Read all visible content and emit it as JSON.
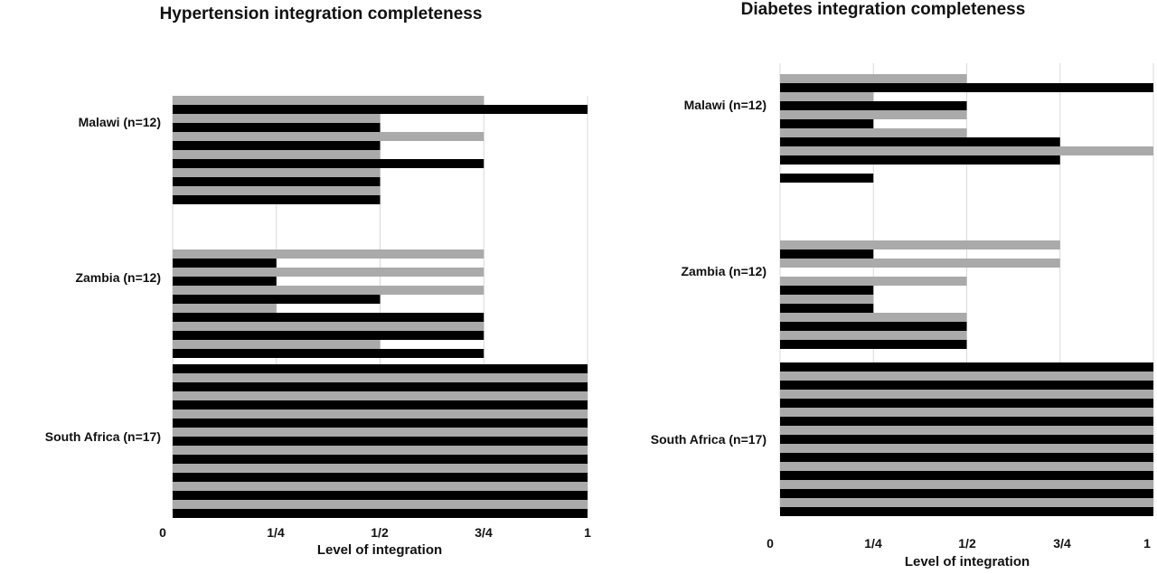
{
  "colors": {
    "black": "#000000",
    "gray": "#aaaaaa",
    "grid": "#d9d9d9"
  },
  "chart_data": [
    {
      "type": "bar",
      "orientation": "horizontal",
      "title": "Hypertension integration completeness",
      "xlabel": "Level of integration",
      "xlim": [
        0,
        1
      ],
      "x_ticks": [
        0,
        0.25,
        0.5,
        0.75,
        1
      ],
      "x_tick_labels": [
        "0",
        "1/4",
        "1/2",
        "3/4",
        "1"
      ],
      "grid": "vertical",
      "categories": [
        "Malawi (n=12)",
        "Zambia (n=12)",
        "South Africa (n=17)"
      ],
      "groups": [
        {
          "category": "Malawi (n=12)",
          "values": [
            0.75,
            1,
            0.5,
            0.5,
            0.75,
            0.5,
            0.5,
            0.75,
            0.5,
            0.5,
            0.5,
            0.5
          ],
          "colors": [
            "gray",
            "black",
            "gray",
            "black",
            "gray",
            "black",
            "gray",
            "black",
            "gray",
            "black",
            "gray",
            "black"
          ]
        },
        {
          "category": "Zambia (n=12)",
          "values": [
            0.75,
            0.25,
            0.75,
            0.25,
            0.75,
            0.5,
            0.25,
            0.75,
            0.75,
            0.75,
            0.5,
            0.75
          ],
          "colors": [
            "gray",
            "black",
            "gray",
            "black",
            "gray",
            "black",
            "gray",
            "black",
            "gray",
            "black",
            "gray",
            "black"
          ]
        },
        {
          "category": "South Africa (n=17)",
          "values": [
            1,
            1,
            1,
            1,
            1,
            1,
            1,
            1,
            1,
            1,
            1,
            1,
            1,
            1,
            1,
            1,
            1
          ],
          "colors": [
            "black",
            "gray",
            "black",
            "gray",
            "black",
            "gray",
            "black",
            "gray",
            "black",
            "gray",
            "black",
            "gray",
            "black",
            "gray",
            "black",
            "gray",
            "black"
          ]
        }
      ]
    },
    {
      "type": "bar",
      "orientation": "horizontal",
      "title": "Diabetes integration completeness",
      "xlabel": "Level of integration",
      "xlim": [
        0,
        1
      ],
      "x_ticks": [
        0,
        0.25,
        0.5,
        0.75,
        1
      ],
      "x_tick_labels": [
        "0",
        "1/4",
        "1/2",
        "3/4",
        "1"
      ],
      "grid": "vertical",
      "categories": [
        "Malawi (n=12)",
        "Zambia (n=12)",
        "South Africa (n=17)"
      ],
      "groups": [
        {
          "category": "Malawi (n=12)",
          "values": [
            0.5,
            1,
            0.25,
            0.5,
            0.5,
            0.25,
            0.5,
            0.75,
            1,
            0.75,
            0,
            0.25
          ],
          "colors": [
            "gray",
            "black",
            "gray",
            "black",
            "gray",
            "black",
            "gray",
            "black",
            "gray",
            "black",
            "gray",
            "black"
          ]
        },
        {
          "category": "Zambia (n=12)",
          "values": [
            0.75,
            0.25,
            0.75,
            0,
            0.5,
            0.25,
            0.25,
            0.25,
            0.5,
            0.5,
            0.5,
            0.5
          ],
          "colors": [
            "gray",
            "black",
            "gray",
            "black",
            "gray",
            "black",
            "gray",
            "black",
            "gray",
            "black",
            "gray",
            "black"
          ]
        },
        {
          "category": "South Africa (n=17)",
          "values": [
            1,
            1,
            1,
            1,
            1,
            1,
            1,
            1,
            1,
            1,
            1,
            1,
            1,
            1,
            1,
            1,
            1
          ],
          "colors": [
            "black",
            "gray",
            "black",
            "gray",
            "black",
            "gray",
            "black",
            "gray",
            "black",
            "gray",
            "black",
            "gray",
            "black",
            "gray",
            "black",
            "gray",
            "black"
          ]
        }
      ]
    }
  ]
}
